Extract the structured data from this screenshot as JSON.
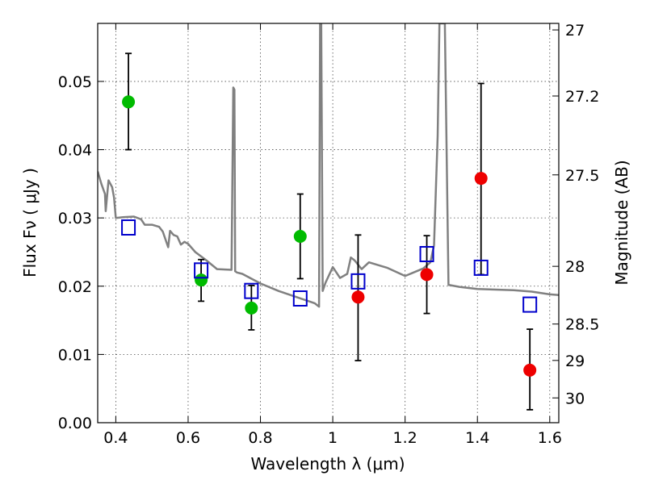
{
  "chart_data": {
    "type": "scatter",
    "title": "",
    "xlabel": "Wavelength  λ (μm)",
    "ylabel": "Flux  Fν  ( μJy )",
    "y2label": "Magnitude (AB)",
    "xlim": [
      0.35,
      1.625
    ],
    "ylim": [
      0.0,
      0.0585
    ],
    "grid": true,
    "x_ticks": [
      {
        "value": 0.4,
        "label": "0.4"
      },
      {
        "value": 0.6,
        "label": "0.6"
      },
      {
        "value": 0.8,
        "label": "0.8"
      },
      {
        "value": 1.0,
        "label": "1"
      },
      {
        "value": 1.2,
        "label": "1.2"
      },
      {
        "value": 1.4,
        "label": "1.4"
      },
      {
        "value": 1.6,
        "label": "1.6"
      }
    ],
    "y_ticks": [
      {
        "value": 0.0,
        "label": "0.00"
      },
      {
        "value": 0.01,
        "label": "0.01"
      },
      {
        "value": 0.02,
        "label": "0.02"
      },
      {
        "value": 0.03,
        "label": "0.03"
      },
      {
        "value": 0.04,
        "label": "0.04"
      },
      {
        "value": 0.05,
        "label": "0.05"
      }
    ],
    "y2_ticks": [
      {
        "mag": 27.0,
        "label": "27"
      },
      {
        "mag": 27.2,
        "label": "27.2"
      },
      {
        "mag": 27.5,
        "label": "27.5"
      },
      {
        "mag": 28.0,
        "label": "28"
      },
      {
        "mag": 28.5,
        "label": "28.5"
      },
      {
        "mag": 29.0,
        "label": "29"
      },
      {
        "mag": 30.0,
        "label": "30"
      }
    ],
    "series": [
      {
        "marker": "circle",
        "color": "#00bb00",
        "points": [
          {
            "x": 0.435,
            "y": 0.047,
            "err_lo": 0.04,
            "err_hi": 0.0541
          },
          {
            "x": 0.636,
            "y": 0.0209,
            "err_lo": 0.0178,
            "err_hi": 0.0239
          },
          {
            "x": 0.775,
            "y": 0.0168,
            "err_lo": 0.0136,
            "err_hi": 0.0201
          },
          {
            "x": 0.91,
            "y": 0.0273,
            "err_lo": 0.0211,
            "err_hi": 0.0335
          }
        ]
      },
      {
        "marker": "circle",
        "color": "#ee0000",
        "points": [
          {
            "x": 1.07,
            "y": 0.0184,
            "err_lo": 0.0091,
            "err_hi": 0.0275
          },
          {
            "x": 1.26,
            "y": 0.0217,
            "err_lo": 0.016,
            "err_hi": 0.0274
          },
          {
            "x": 1.41,
            "y": 0.0358,
            "err_lo": 0.0217,
            "err_hi": 0.0497
          },
          {
            "x": 1.545,
            "y": 0.0077,
            "err_lo": 0.0019,
            "err_hi": 0.0137
          }
        ]
      },
      {
        "marker": "open-square",
        "color": "#0000cc",
        "points": [
          {
            "x": 0.435,
            "y": 0.0286
          },
          {
            "x": 0.636,
            "y": 0.0223
          },
          {
            "x": 0.775,
            "y": 0.0193
          },
          {
            "x": 0.91,
            "y": 0.0182
          },
          {
            "x": 1.07,
            "y": 0.0207
          },
          {
            "x": 1.26,
            "y": 0.0247
          },
          {
            "x": 1.41,
            "y": 0.0227
          },
          {
            "x": 1.545,
            "y": 0.0173
          }
        ]
      },
      {
        "type": "line",
        "color": "#808080",
        "x": [
          0.35,
          0.36,
          0.37,
          0.372,
          0.38,
          0.39,
          0.395,
          0.4,
          0.42,
          0.45,
          0.47,
          0.48,
          0.5,
          0.52,
          0.53,
          0.545,
          0.55,
          0.56,
          0.57,
          0.58,
          0.59,
          0.6,
          0.62,
          0.65,
          0.68,
          0.72,
          0.725,
          0.728,
          0.73,
          0.735,
          0.75,
          0.8,
          0.85,
          0.9,
          0.95,
          0.962,
          0.965,
          0.968,
          0.972,
          0.98,
          1.0,
          1.02,
          1.04,
          1.05,
          1.06,
          1.08,
          1.1,
          1.15,
          1.2,
          1.25,
          1.27,
          1.28,
          1.29,
          1.295,
          1.3,
          1.31,
          1.32,
          1.35,
          1.4,
          1.45,
          1.5,
          1.55,
          1.6,
          1.625
        ],
        "y": [
          0.0368,
          0.035,
          0.0335,
          0.031,
          0.0355,
          0.0345,
          0.033,
          0.03,
          0.0301,
          0.0302,
          0.0298,
          0.029,
          0.029,
          0.0287,
          0.028,
          0.0257,
          0.0281,
          0.0275,
          0.0273,
          0.0261,
          0.0265,
          0.0262,
          0.025,
          0.0238,
          0.0225,
          0.0224,
          0.0491,
          0.0488,
          0.0222,
          0.022,
          0.0218,
          0.0204,
          0.0193,
          0.0184,
          0.0175,
          0.017,
          0.0585,
          0.0585,
          0.0193,
          0.0205,
          0.0228,
          0.0212,
          0.0218,
          0.0242,
          0.0238,
          0.0225,
          0.0235,
          0.0227,
          0.0215,
          0.0226,
          0.0235,
          0.026,
          0.042,
          0.0585,
          0.0585,
          0.0585,
          0.0202,
          0.0199,
          0.0196,
          0.0195,
          0.0194,
          0.0192,
          0.0188,
          0.0187
        ]
      }
    ]
  }
}
